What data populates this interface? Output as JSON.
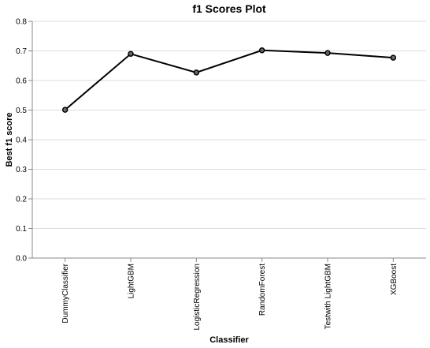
{
  "chart_data": {
    "type": "line",
    "title": "f1 Scores Plot",
    "xlabel": "Classifier",
    "ylabel": "Best f1 score",
    "categories": [
      "DummyClassifier",
      "LightGBM",
      "LogisticRegression",
      "RandomForest",
      "Testwith LightGBM",
      "XGBoost"
    ],
    "values": [
      0.501,
      0.69,
      0.627,
      0.702,
      0.693,
      0.677
    ],
    "ylim": [
      0,
      0.8
    ],
    "yticks": [
      "0.0",
      "0.1",
      "0.2",
      "0.3",
      "0.4",
      "0.5",
      "0.6",
      "0.7",
      "0.8"
    ],
    "grid": true,
    "colors": {
      "line": "#000000",
      "point_fill": "#666666",
      "grid": "#dddddd",
      "axis": "#888888"
    }
  }
}
